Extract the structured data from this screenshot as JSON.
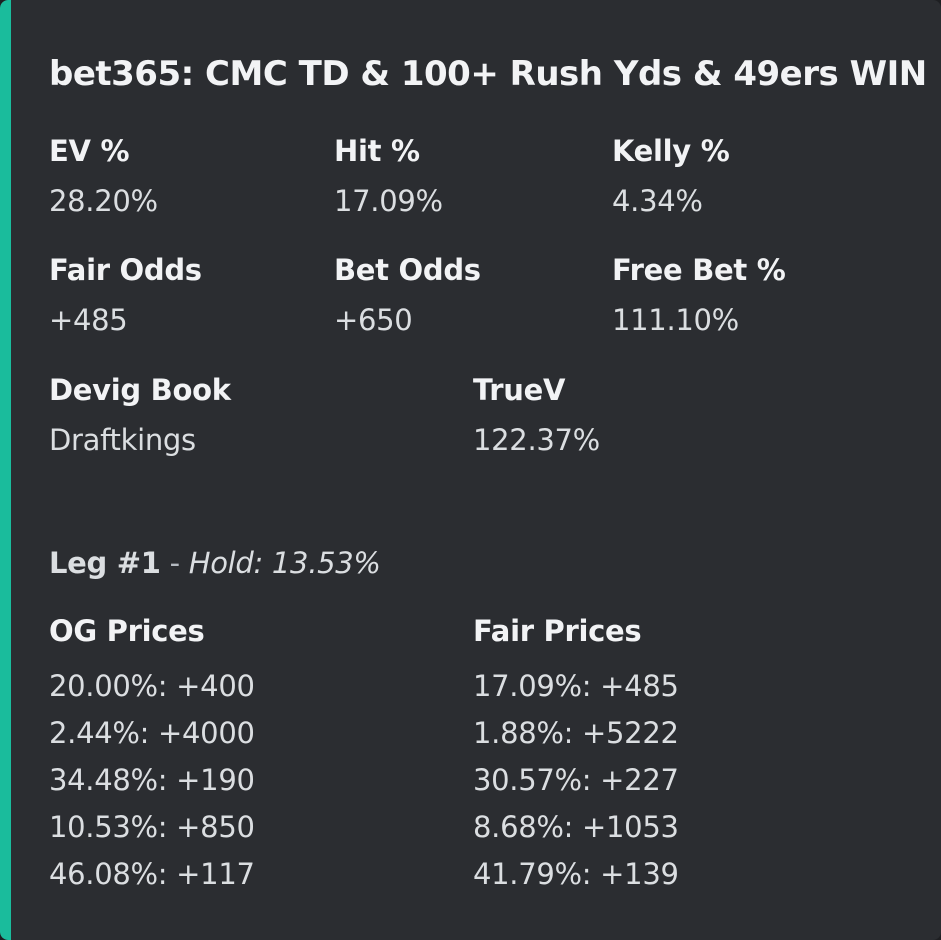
{
  "embed": {
    "accent_color": "#1abc9c",
    "title": "bet365: CMC TD & 100+ Rush Yds & 49ers WIN"
  },
  "stats": {
    "ev": {
      "name": "EV %",
      "value": "28.20%"
    },
    "hit": {
      "name": "Hit %",
      "value": "17.09%"
    },
    "kelly": {
      "name": "Kelly %",
      "value": "4.34%"
    },
    "fair_odds": {
      "name": "Fair Odds",
      "value": "+485"
    },
    "bet_odds": {
      "name": "Bet Odds",
      "value": "+650"
    },
    "free_bet": {
      "name": "Free Bet %",
      "value": "111.10%"
    },
    "devig_book": {
      "name": "Devig Book",
      "value": "Draftkings"
    },
    "truev": {
      "name": "TrueV",
      "value": "122.37%"
    }
  },
  "leg": {
    "label": "Leg #1",
    "separator": " - ",
    "hold": "Hold: 13.53%"
  },
  "og_prices": {
    "name": "OG Prices",
    "lines": [
      "20.00%: +400",
      "2.44%: +4000",
      "34.48%: +190",
      "10.53%: +850",
      "46.08%: +117"
    ]
  },
  "fair_prices": {
    "name": "Fair Prices",
    "lines": [
      "17.09%: +485",
      "1.88%: +5222",
      "30.57%: +227",
      "8.68%: +1053",
      "41.79%: +139"
    ]
  }
}
